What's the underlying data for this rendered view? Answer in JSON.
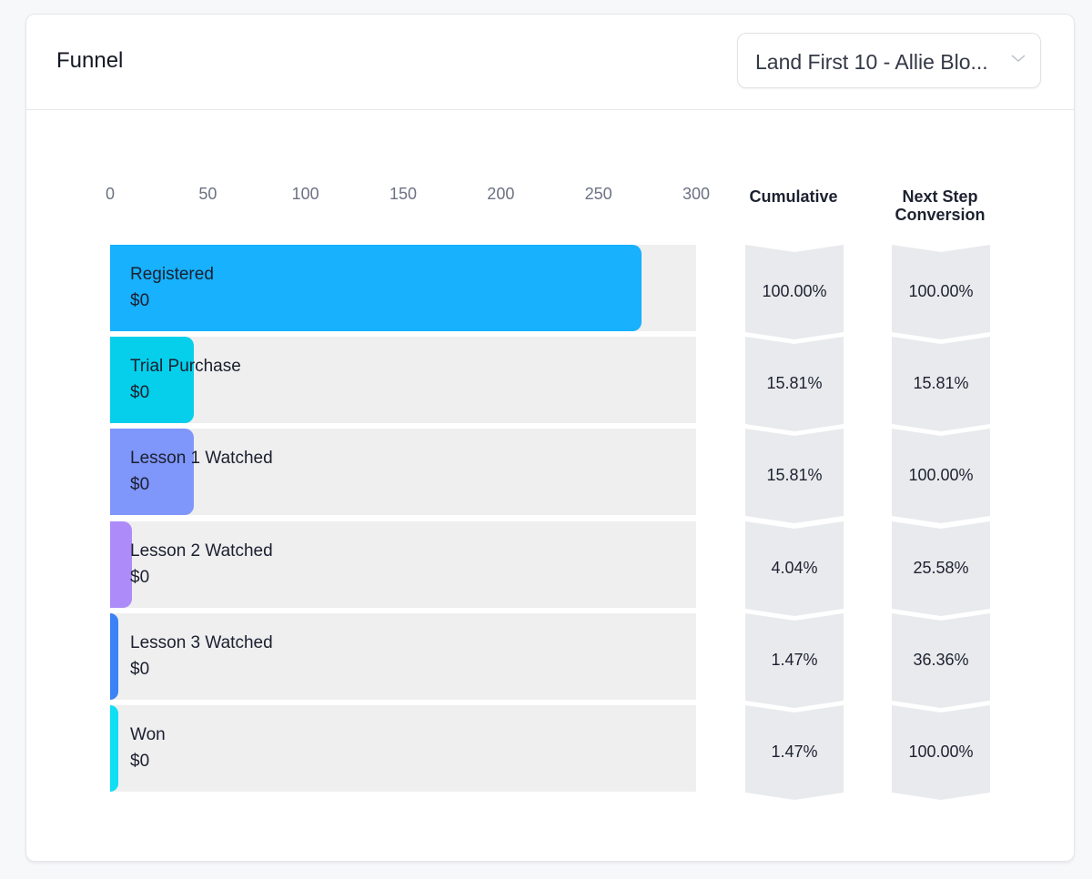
{
  "header": {
    "title": "Funnel",
    "select_value": "Land First 10 - Allie Blo..."
  },
  "columns": {
    "cumulative": "Cumulative",
    "next_step_line1": "Next Step",
    "next_step_line2": "Conversion"
  },
  "colors": {
    "track": "#efeff0",
    "chevron": "#e8eaed"
  },
  "chart_data": {
    "type": "bar",
    "orientation": "horizontal",
    "title": "Funnel",
    "xlim": [
      0,
      300
    ],
    "x_ticks": [
      "0",
      "50",
      "100",
      "150",
      "200",
      "250",
      "300"
    ],
    "categories": [
      "Registered",
      "Trial Purchase",
      "Lesson 1 Watched",
      "Lesson 2 Watched",
      "Lesson 3 Watched",
      "Won"
    ],
    "values": [
      272,
      43,
      43,
      11,
      4,
      4
    ],
    "amounts": [
      "$0",
      "$0",
      "$0",
      "$0",
      "$0",
      "$0"
    ],
    "bar_colors": [
      "#17b1fd",
      "#05cfeb",
      "#7f96fb",
      "#ad8cf9",
      "#3b82f6",
      "#10def2"
    ],
    "cumulative": [
      "100.00%",
      "15.81%",
      "15.81%",
      "4.04%",
      "1.47%",
      "1.47%"
    ],
    "next_step_conversion": [
      "100.00%",
      "15.81%",
      "100.00%",
      "25.58%",
      "36.36%",
      "100.00%"
    ]
  }
}
